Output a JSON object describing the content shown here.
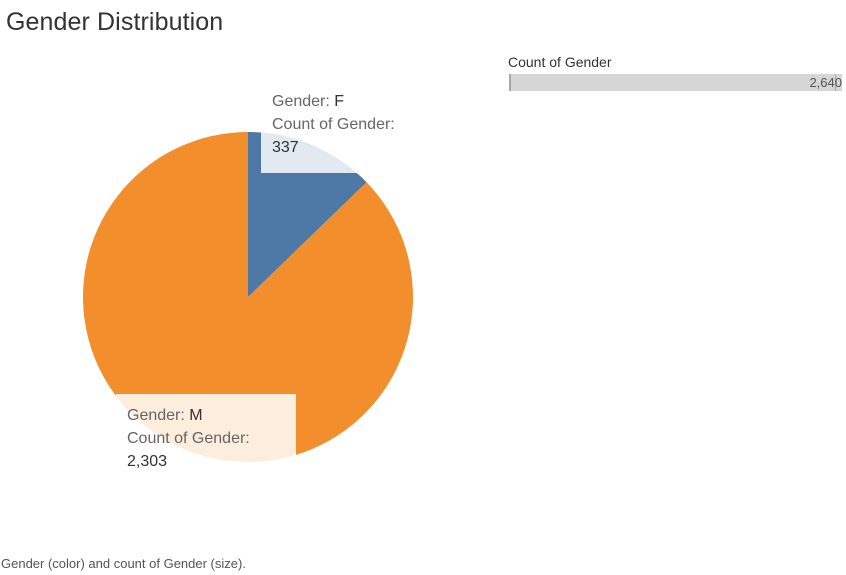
{
  "chart_data": {
    "type": "pie",
    "title": "Gender Distribution",
    "categories": [
      "F",
      "M"
    ],
    "values": [
      337,
      2303
    ],
    "colors": [
      "#4e79a7",
      "#f28e2b"
    ],
    "tooltips": [
      {
        "dimension_label": "Gender:",
        "dimension_value": "F",
        "measure_label": "Count of Gender:",
        "measure_value": "337"
      },
      {
        "dimension_label": "Gender:",
        "dimension_value": "M",
        "measure_label": "Count of Gender:",
        "measure_value": "2,303"
      }
    ],
    "size_legend": {
      "title": "Count of Gender",
      "value": "2,640"
    },
    "caption": "Gender (color) and count of Gender (size)."
  }
}
